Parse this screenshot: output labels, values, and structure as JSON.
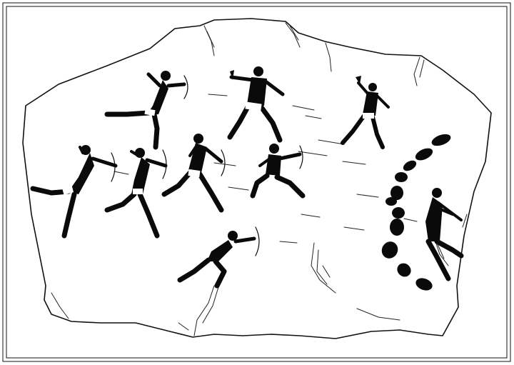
{
  "illustration": {
    "colors": {
      "ink": "#0a0a0a",
      "paper": "#ffffff",
      "loincloth": "#ffffff"
    },
    "figures": [
      "archer-leaping-top-left",
      "torch-bearer-center",
      "torch-bearer-right",
      "archer-running-left",
      "archer-running-left-center",
      "archer-running-center",
      "archer-seated-kneeling",
      "archer-lunging-bottom",
      "musician-right"
    ],
    "features": [
      "rock-slab-outline",
      "rock-cracks",
      "footprint-arc",
      "arrow-streaks"
    ]
  }
}
